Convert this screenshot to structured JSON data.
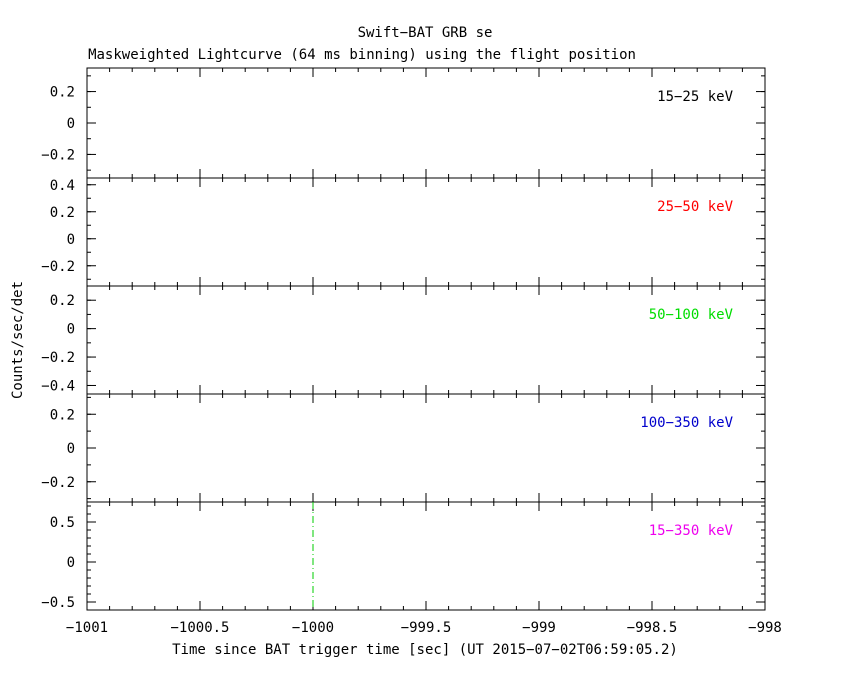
{
  "chart_data": {
    "type": "line",
    "title": "Swift−BAT GRB se",
    "subtitle": "Maskweighted Lightcurve (64 ms binning) using the flight position",
    "xlabel": "Time since BAT trigger time [sec] (UT 2015−07−02T06:59:05.2)",
    "ylabel": "Counts/sec/det",
    "xlim": [
      -1001,
      -998
    ],
    "x_ticks": [
      -1001,
      -1000.5,
      -1000,
      -999.5,
      -999,
      -998.5,
      -998
    ],
    "x_tick_labels": [
      "−1001",
      "−1000.5",
      "−1000",
      "−999.5",
      "−999",
      "−998.5",
      "−998"
    ],
    "trigger_marker": {
      "x": -1000,
      "color": "#00cc00",
      "style": "dash-dot"
    },
    "panels": [
      {
        "band": "15−25 keV",
        "color": "#000000",
        "ylim": [
          -0.35,
          0.35
        ],
        "ticks": [
          0.2,
          0,
          -0.2
        ],
        "tick_labels": [
          "0.2",
          "0",
          "−0.2"
        ],
        "values": []
      },
      {
        "band": "25−50 keV",
        "color": "#ff0000",
        "ylim": [
          -0.35,
          0.45
        ],
        "ticks": [
          0.4,
          0.2,
          0,
          -0.2
        ],
        "tick_labels": [
          "0.4",
          "0.2",
          "0",
          "−0.2"
        ],
        "values": []
      },
      {
        "band": "50−100 keV",
        "color": "#00dd00",
        "ylim": [
          -0.46,
          0.3
        ],
        "ticks": [
          0.2,
          0,
          -0.2,
          -0.4
        ],
        "tick_labels": [
          "0.2",
          "0",
          "−0.2",
          "−0.4"
        ],
        "values": []
      },
      {
        "band": "100−350 keV",
        "color": "#0000cc",
        "ylim": [
          -0.32,
          0.32
        ],
        "ticks": [
          0.2,
          0,
          -0.2
        ],
        "tick_labels": [
          "0.2",
          "0",
          "−0.2"
        ],
        "values": []
      },
      {
        "band": "15−350 keV",
        "color": "#ee00ee",
        "ylim": [
          -0.6,
          0.75
        ],
        "ticks": [
          0.5,
          0,
          -0.5
        ],
        "tick_labels": [
          "0.5",
          "0",
          "−0.5"
        ],
        "values": []
      }
    ]
  }
}
